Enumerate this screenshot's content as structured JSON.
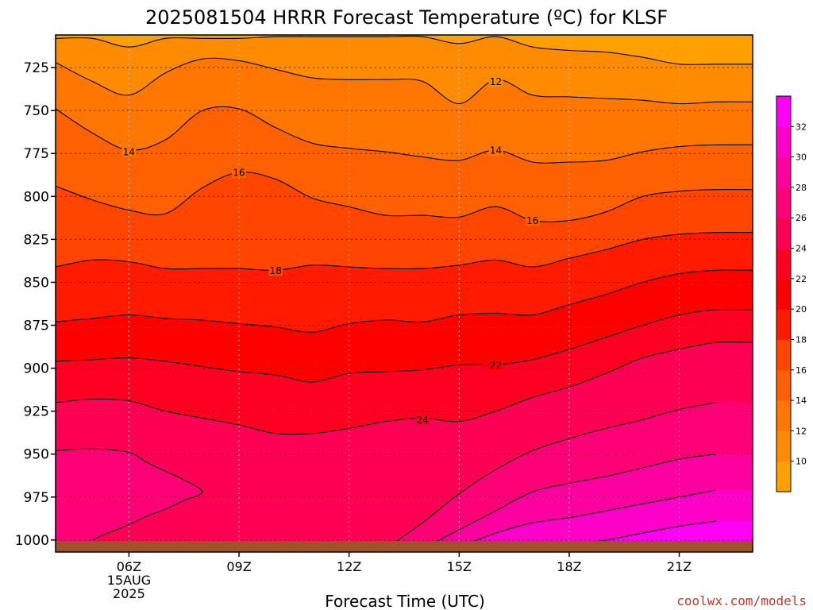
{
  "title": "2025081504 HRRR Forecast Temperature (ºC) for KLSF",
  "credit": "coolwx.com/models",
  "chart_data": {
    "type": "contour",
    "title": "2025081504 HRRR Forecast Temperature (ºC) for KLSF",
    "xlabel": "Forecast Time (UTC)",
    "ylabel": "",
    "x_range_hours": [
      4,
      23
    ],
    "y_range_hpa": [
      706,
      1007
    ],
    "y_scale": "inverted",
    "x_ticks": [
      {
        "hour": 6,
        "label": "06Z",
        "sub1": "15AUG",
        "sub2": "2025"
      },
      {
        "hour": 9,
        "label": "09Z",
        "sub1": "",
        "sub2": ""
      },
      {
        "hour": 12,
        "label": "12Z",
        "sub1": "",
        "sub2": ""
      },
      {
        "hour": 15,
        "label": "15Z",
        "sub1": "",
        "sub2": ""
      },
      {
        "hour": 18,
        "label": "18Z",
        "sub1": "",
        "sub2": ""
      },
      {
        "hour": 21,
        "label": "21Z",
        "sub1": "",
        "sub2": ""
      }
    ],
    "y_ticks": [
      725,
      750,
      775,
      800,
      825,
      850,
      875,
      900,
      925,
      950,
      975,
      1000
    ],
    "grid": true,
    "ground_color": "#a0522d",
    "colorbar": {
      "levels": [
        8,
        10,
        12,
        14,
        16,
        18,
        20,
        22,
        24,
        26,
        28,
        30,
        32,
        34
      ],
      "tick_labels": [
        10,
        12,
        14,
        16,
        18,
        20,
        22,
        24,
        26,
        28,
        30,
        32
      ],
      "colors": [
        "#ff9f00",
        "#ff8c00",
        "#ff7600",
        "#ff6000",
        "#ff4500",
        "#ff1a00",
        "#ff0000",
        "#ff0022",
        "#ff0055",
        "#ff0077",
        "#ff00a0",
        "#ff00c8",
        "#ff00f5"
      ]
    },
    "contours": [
      {
        "level": 10,
        "times": [
          4.0,
          5.0,
          6.0,
          7.0,
          8.0,
          9.0,
          10.0,
          11.0,
          12.0,
          13.0,
          14.0,
          15.0,
          16.0,
          17.0,
          18.0,
          19.0,
          20.0,
          21.0,
          22.0
        ],
        "pressures": [
          708,
          708,
          713,
          708,
          708,
          708,
          707,
          707,
          707,
          707,
          707,
          711,
          707,
          713,
          715,
          716,
          719,
          723,
          723
        ]
      },
      {
        "level": 12,
        "times": [
          4.0,
          5.0,
          6.0,
          7.0,
          8.0,
          9.0,
          10.0,
          11.0,
          12.0,
          13.0,
          14.0,
          15.0,
          16.0,
          17.0,
          18.0,
          19.0,
          20.0,
          21.0,
          22.0
        ],
        "pressures": [
          722,
          733,
          741,
          728,
          720,
          721,
          726,
          731,
          732,
          732,
          733,
          746,
          732,
          741,
          742,
          743,
          744,
          746,
          745
        ]
      },
      {
        "level": 14,
        "times": [
          4.0,
          5.0,
          6.0,
          7.0,
          8.0,
          9.0,
          10.0,
          11.0,
          12.0,
          13.0,
          14.0,
          15.0,
          16.0,
          17.0,
          18.0,
          19.0,
          20.0,
          21.0,
          22.0
        ],
        "pressures": [
          749,
          763,
          773,
          767,
          750,
          749,
          760,
          769,
          772,
          774,
          777,
          779,
          773,
          780,
          780,
          779,
          774,
          771,
          770
        ]
      },
      {
        "level": 16,
        "times": [
          4.0,
          5.0,
          6.0,
          7.0,
          8.0,
          9.0,
          10.0,
          11.0,
          12.0,
          13.0,
          14.0,
          15.0,
          16.0,
          17.0,
          18.0,
          19.0,
          20.0,
          21.0,
          22.0
        ],
        "pressures": [
          794,
          802,
          808,
          810,
          795,
          786,
          790,
          801,
          806,
          811,
          811,
          812,
          806,
          814,
          814,
          809,
          800,
          797,
          796
        ]
      },
      {
        "level": 18,
        "times": [
          4.0,
          5.0,
          6.0,
          7.0,
          8.0,
          9.0,
          10.0,
          11.0,
          12.0,
          13.0,
          14.0,
          15.0,
          16.0,
          17.0,
          18.0,
          19.0,
          20.0,
          21.0,
          22.0
        ],
        "pressures": [
          841,
          837,
          838,
          842,
          842,
          842,
          843,
          840,
          841,
          842,
          842,
          840,
          837,
          841,
          836,
          831,
          825,
          822,
          821
        ]
      },
      {
        "level": 20,
        "times": [
          4.0,
          5.0,
          6.0,
          7.0,
          8.0,
          9.0,
          10.0,
          11.0,
          12.0,
          13.0,
          14.0,
          15.0,
          16.0,
          17.0,
          18.0,
          19.0,
          20.0,
          21.0,
          22.0
        ],
        "pressures": [
          873,
          871,
          869,
          871,
          872,
          874,
          876,
          879,
          874,
          872,
          873,
          869,
          868,
          869,
          863,
          857,
          850,
          845,
          843
        ]
      },
      {
        "level": 22,
        "times": [
          4.0,
          5.0,
          6.0,
          7.0,
          8.0,
          9.0,
          10.0,
          11.0,
          12.0,
          13.0,
          14.0,
          15.0,
          16.0,
          17.0,
          18.0,
          19.0,
          20.0,
          21.0,
          22.0
        ],
        "pressures": [
          896,
          895,
          894,
          896,
          899,
          902,
          904,
          908,
          903,
          902,
          901,
          898,
          898,
          895,
          889,
          882,
          875,
          869,
          866
        ]
      },
      {
        "level": 24,
        "times": [
          4.0,
          5.0,
          6.0,
          7.0,
          8.0,
          9.0,
          10.0,
          11.0,
          12.0,
          13.0,
          14.0,
          15.0,
          16.0,
          17.0,
          18.0,
          19.0,
          20.0,
          21.0,
          22.0
        ],
        "pressures": [
          920,
          918,
          919,
          925,
          929,
          933,
          938,
          938,
          935,
          931,
          929,
          931,
          925,
          917,
          911,
          903,
          894,
          889,
          885
        ]
      },
      {
        "level": 26,
        "times": [
          4.0,
          5.0,
          6.0,
          6.5,
          7.0,
          7.5,
          8.0,
          7.5,
          7.0,
          6.5,
          6.0,
          5.3,
          5.0
        ],
        "pressures": [
          948,
          947,
          949,
          955,
          960,
          965,
          972,
          977,
          982,
          986,
          991,
          997,
          1000
        ]
      },
      {
        "level": 26,
        "times": [
          13.0,
          14.0,
          15.0,
          16.0,
          17.0,
          18.0,
          19.0,
          20.0,
          21.0,
          22.0
        ],
        "pressures": [
          1005,
          990,
          973,
          959,
          948,
          941,
          935,
          930,
          924,
          920
        ]
      },
      {
        "level": 28,
        "times": [
          14.0,
          15.0,
          16.0,
          17.0,
          18.0,
          19.0,
          20.0,
          21.0,
          22.0
        ],
        "pressures": [
          1005,
          994,
          983,
          972,
          967,
          963,
          958,
          953,
          950
        ]
      },
      {
        "level": 30,
        "times": [
          15.0,
          16.0,
          17.0,
          18.0,
          19.0,
          20.0,
          21.0,
          22.0
        ],
        "pressures": [
          1004,
          996,
          990,
          987,
          983,
          979,
          975,
          971
        ]
      },
      {
        "level": 32,
        "times": [
          17.0,
          18.0,
          19.0,
          20.0,
          21.0,
          22.0
        ],
        "pressures": [
          1005,
          1003,
          1000,
          996,
          992,
          989
        ]
      }
    ],
    "contour_labels": [
      {
        "text": "12",
        "hour": 16.0,
        "hpa": 733
      },
      {
        "text": "14",
        "hour": 6.0,
        "hpa": 774
      },
      {
        "text": "14",
        "hour": 16.0,
        "hpa": 773
      },
      {
        "text": "16",
        "hour": 9.0,
        "hpa": 786
      },
      {
        "text": "16",
        "hour": 17.0,
        "hpa": 814
      },
      {
        "text": "18",
        "hour": 10.0,
        "hpa": 843
      },
      {
        "text": "22",
        "hour": 16.0,
        "hpa": 898
      },
      {
        "text": "24",
        "hour": 14.0,
        "hpa": 930
      }
    ]
  }
}
